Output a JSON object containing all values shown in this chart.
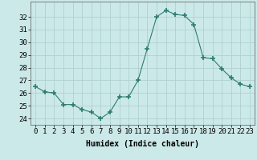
{
  "x": [
    0,
    1,
    2,
    3,
    4,
    5,
    6,
    7,
    8,
    9,
    10,
    11,
    12,
    13,
    14,
    15,
    16,
    17,
    18,
    19,
    20,
    21,
    22,
    23
  ],
  "y": [
    26.5,
    26.1,
    26.0,
    25.1,
    25.1,
    24.7,
    24.5,
    24.0,
    24.5,
    25.7,
    25.7,
    27.0,
    29.5,
    32.0,
    32.5,
    32.2,
    32.1,
    31.4,
    28.8,
    28.7,
    27.9,
    27.2,
    26.7,
    26.5
  ],
  "xlabel": "Humidex (Indice chaleur)",
  "ylim": [
    23.5,
    33.2
  ],
  "xlim": [
    -0.5,
    23.5
  ],
  "yticks": [
    24,
    25,
    26,
    27,
    28,
    29,
    30,
    31,
    32
  ],
  "xticks": [
    0,
    1,
    2,
    3,
    4,
    5,
    6,
    7,
    8,
    9,
    10,
    11,
    12,
    13,
    14,
    15,
    16,
    17,
    18,
    19,
    20,
    21,
    22,
    23
  ],
  "xtick_labels": [
    "0",
    "1",
    "2",
    "3",
    "4",
    "5",
    "6",
    "7",
    "8",
    "9",
    "10",
    "11",
    "12",
    "13",
    "14",
    "15",
    "16",
    "17",
    "18",
    "19",
    "20",
    "21",
    "22",
    "23"
  ],
  "line_color": "#2e7d6e",
  "marker": "+",
  "marker_size": 4,
  "bg_color": "#cce9e9",
  "grid_color": "#b0d0d0",
  "label_fontsize": 7,
  "tick_fontsize": 6.5
}
